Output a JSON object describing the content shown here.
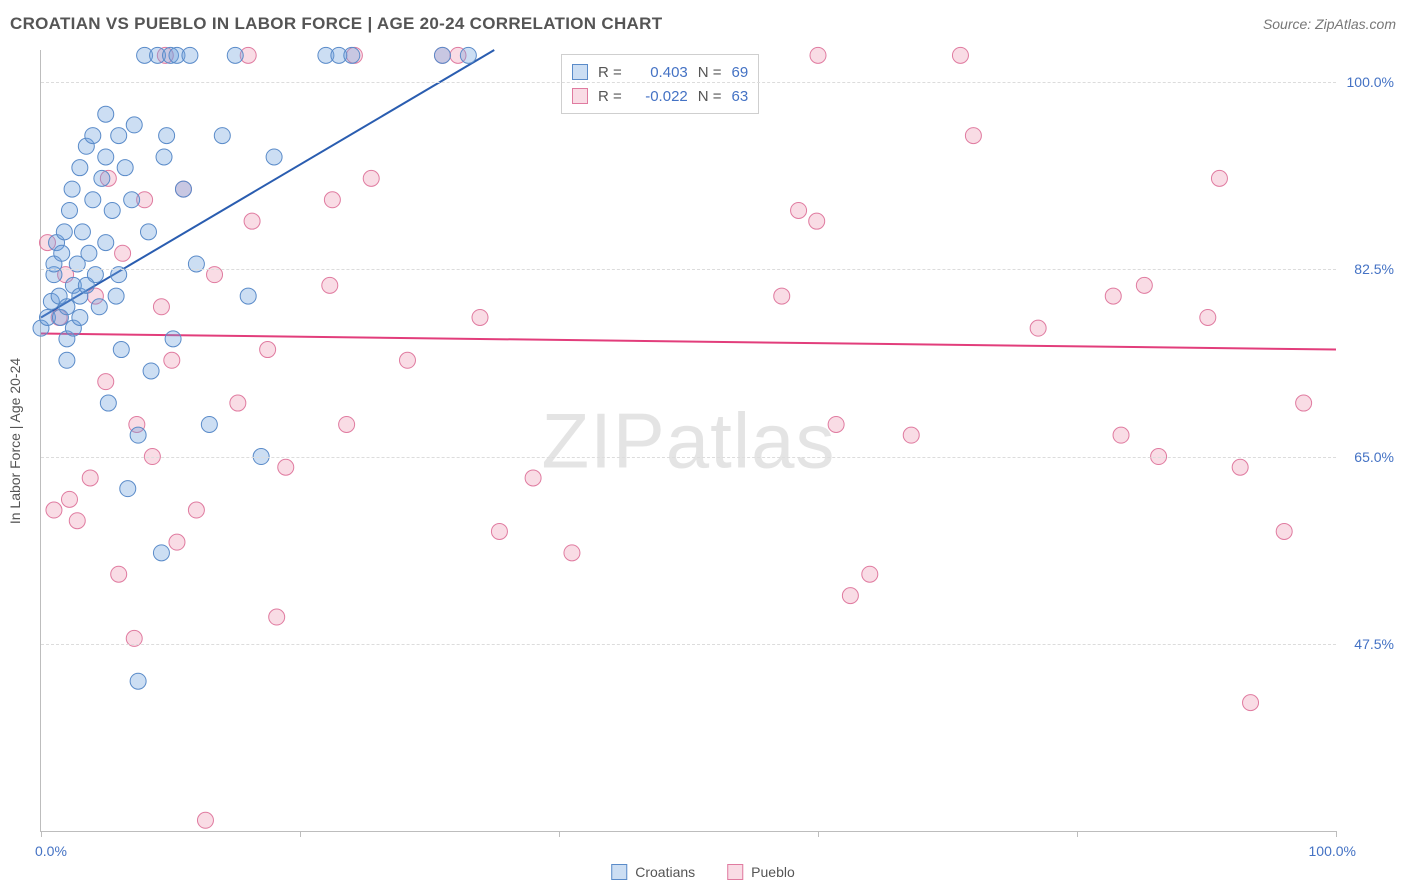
{
  "title": "CROATIAN VS PUEBLO IN LABOR FORCE | AGE 20-24 CORRELATION CHART",
  "source": "Source: ZipAtlas.com",
  "ylabel": "In Labor Force | Age 20-24",
  "watermark": "ZIPatlas",
  "axes": {
    "xlim": [
      0,
      100
    ],
    "ylim": [
      30,
      103
    ],
    "yticks": [
      47.5,
      65.0,
      82.5,
      100.0
    ],
    "ytick_labels": [
      "47.5%",
      "65.0%",
      "82.5%",
      "100.0%"
    ],
    "xticks": [
      0,
      20,
      40,
      60,
      80,
      100
    ],
    "x_min_label": "0.0%",
    "x_max_label": "100.0%"
  },
  "series": {
    "croatians": {
      "label": "Croatians",
      "R": "0.403",
      "N": "69",
      "marker_fill": "rgba(108,160,220,0.35)",
      "marker_stroke": "#5a8bc9",
      "line_color": "#2a5db0",
      "line_width": 2,
      "marker_radius": 8,
      "trend": {
        "x1": 0,
        "y1": 78,
        "x2": 35,
        "y2": 103
      },
      "points": [
        [
          0,
          77
        ],
        [
          0.5,
          78
        ],
        [
          0.8,
          79.5
        ],
        [
          1,
          82
        ],
        [
          1,
          83
        ],
        [
          1.2,
          85
        ],
        [
          1.4,
          80
        ],
        [
          1.5,
          78
        ],
        [
          1.6,
          84
        ],
        [
          1.8,
          86
        ],
        [
          2,
          79
        ],
        [
          2,
          76
        ],
        [
          2,
          74
        ],
        [
          2.2,
          88
        ],
        [
          2.4,
          90
        ],
        [
          2.5,
          81
        ],
        [
          2.5,
          77
        ],
        [
          2.8,
          83
        ],
        [
          3,
          78
        ],
        [
          3,
          80
        ],
        [
          3,
          92
        ],
        [
          3.2,
          86
        ],
        [
          3.5,
          94
        ],
        [
          3.5,
          81
        ],
        [
          3.7,
          84
        ],
        [
          4,
          89
        ],
        [
          4,
          95
        ],
        [
          4.2,
          82
        ],
        [
          4.5,
          79
        ],
        [
          4.7,
          91
        ],
        [
          5,
          85
        ],
        [
          5,
          93
        ],
        [
          5,
          97
        ],
        [
          5.2,
          70
        ],
        [
          5.5,
          88
        ],
        [
          5.8,
          80
        ],
        [
          6,
          95
        ],
        [
          6,
          82
        ],
        [
          6.2,
          75
        ],
        [
          6.5,
          92
        ],
        [
          6.7,
          62
        ],
        [
          7,
          89
        ],
        [
          7.2,
          96
        ],
        [
          7.5,
          67
        ],
        [
          7.5,
          44
        ],
        [
          8,
          102.5
        ],
        [
          8.3,
          86
        ],
        [
          8.5,
          73
        ],
        [
          9,
          102.5
        ],
        [
          9.3,
          56
        ],
        [
          9.5,
          93
        ],
        [
          9.7,
          95
        ],
        [
          10,
          102.5
        ],
        [
          10.2,
          76
        ],
        [
          10.5,
          102.5
        ],
        [
          11,
          90
        ],
        [
          11.5,
          102.5
        ],
        [
          12,
          83
        ],
        [
          13,
          68
        ],
        [
          14,
          95
        ],
        [
          15,
          102.5
        ],
        [
          16,
          80
        ],
        [
          17,
          65
        ],
        [
          18,
          93
        ],
        [
          22,
          102.5
        ],
        [
          23,
          102.5
        ],
        [
          24,
          102.5
        ],
        [
          31,
          102.5
        ],
        [
          33,
          102.5
        ]
      ]
    },
    "pueblo": {
      "label": "Pueblo",
      "R": "-0.022",
      "N": "63",
      "marker_fill": "rgba(235,140,170,0.30)",
      "marker_stroke": "#e07ba0",
      "line_color": "#e23d7b",
      "line_width": 2,
      "marker_radius": 8,
      "trend": {
        "x1": 0,
        "y1": 76.5,
        "x2": 100,
        "y2": 75
      },
      "points": [
        [
          0.5,
          85
        ],
        [
          1,
          60
        ],
        [
          1.4,
          78
        ],
        [
          1.9,
          82
        ],
        [
          2.2,
          61
        ],
        [
          2.8,
          59
        ],
        [
          3.8,
          63
        ],
        [
          4.2,
          80
        ],
        [
          5,
          72
        ],
        [
          5.2,
          91
        ],
        [
          6,
          54
        ],
        [
          6.3,
          84
        ],
        [
          7.2,
          48
        ],
        [
          7.4,
          68
        ],
        [
          8,
          89
        ],
        [
          8.6,
          65
        ],
        [
          9.3,
          79
        ],
        [
          9.6,
          102.5
        ],
        [
          10.1,
          74
        ],
        [
          10.5,
          57
        ],
        [
          11,
          90
        ],
        [
          12,
          60
        ],
        [
          12.7,
          31
        ],
        [
          13.4,
          82
        ],
        [
          15.2,
          70
        ],
        [
          16,
          102.5
        ],
        [
          16.3,
          87
        ],
        [
          17.5,
          75
        ],
        [
          18.2,
          50
        ],
        [
          18.9,
          64
        ],
        [
          22.3,
          81
        ],
        [
          22.5,
          89
        ],
        [
          23.6,
          68
        ],
        [
          24.2,
          102.5
        ],
        [
          25.5,
          91
        ],
        [
          28.3,
          74
        ],
        [
          31,
          102.5
        ],
        [
          32.2,
          102.5
        ],
        [
          33.9,
          78
        ],
        [
          35.4,
          58
        ],
        [
          38,
          63
        ],
        [
          41,
          56
        ],
        [
          57.2,
          80
        ],
        [
          58.5,
          88
        ],
        [
          59.9,
          87
        ],
        [
          60,
          102.5
        ],
        [
          61.4,
          68
        ],
        [
          62.5,
          52
        ],
        [
          64,
          54
        ],
        [
          67.2,
          67
        ],
        [
          71,
          102.5
        ],
        [
          72,
          95
        ],
        [
          77,
          77
        ],
        [
          82.8,
          80
        ],
        [
          83.4,
          67
        ],
        [
          85.2,
          81
        ],
        [
          86.3,
          65
        ],
        [
          90.1,
          78
        ],
        [
          91,
          91
        ],
        [
          92.6,
          64
        ],
        [
          93.4,
          42
        ],
        [
          96,
          58
        ],
        [
          97.5,
          70
        ]
      ]
    }
  },
  "legend": {
    "R_label": "R =",
    "N_label": "N =",
    "swatch_blue_fill": "rgba(108,160,220,0.35)",
    "swatch_blue_border": "#5a8bc9",
    "swatch_pink_fill": "rgba(235,140,170,0.30)",
    "swatch_pink_border": "#e07ba0"
  }
}
